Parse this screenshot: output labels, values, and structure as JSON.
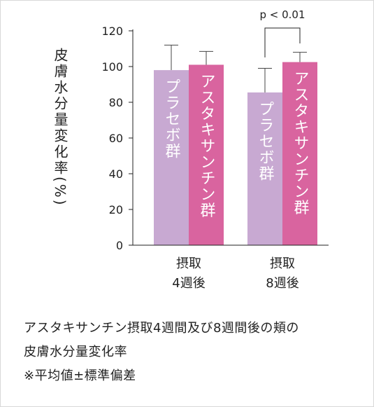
{
  "chart_data": {
    "type": "bar",
    "ylabel": "皮膚水分量変化率(%)",
    "ylim": [
      0,
      120
    ],
    "yticks": [
      0,
      20,
      40,
      60,
      80,
      100,
      120
    ],
    "grid": false,
    "groups": [
      {
        "label_line1": "摂取",
        "label_line2": "4週後",
        "bars": [
          {
            "series": "プラセボ群",
            "value": 98,
            "error": 14
          },
          {
            "series": "アスタキサンチン群",
            "value": 101,
            "error": 7.5
          }
        ]
      },
      {
        "label_line1": "摂取",
        "label_line2": "8週後",
        "bars": [
          {
            "series": "プラセボ群",
            "value": 85.5,
            "error": 13.5
          },
          {
            "series": "アスタキサンチン群",
            "value": 102.5,
            "error": 5.5
          }
        ]
      }
    ],
    "significance": {
      "text": "p < 0.01",
      "group": 1
    },
    "colors": {
      "placebo": "#c8a9d2",
      "astaxanthin": "#d9649f",
      "axis": "#222222",
      "errorbar": "#444444"
    }
  },
  "caption": {
    "line1": "アスタキサンチン摂取4週間及び8週間後の頬の",
    "line2": "皮膚水分量変化率",
    "line3": "※平均値±標準偏差"
  }
}
